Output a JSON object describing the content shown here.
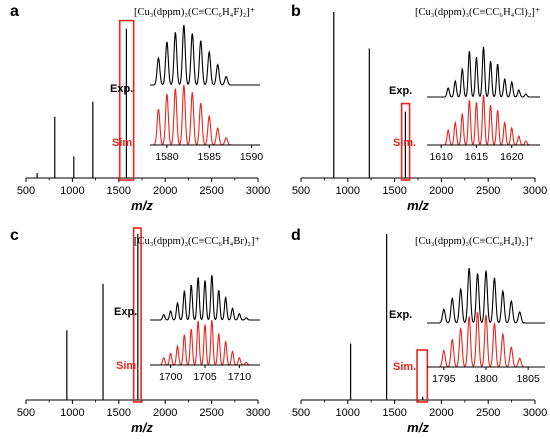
{
  "chart_data": [
    {
      "type": "line",
      "panel_label": "a",
      "formula": "[Cu₃(dppm)₃(C≡CC₆H₄F)₂]⁺",
      "xlabel": "m/z",
      "xlim": [
        500,
        3000
      ],
      "x_ticks": [
        "500",
        "1000",
        "1500",
        "2000",
        "2500",
        "3000"
      ],
      "peaks": [
        {
          "x": 620,
          "y": 0.03
        },
        {
          "x": 810,
          "y": 0.37
        },
        {
          "x": 1015,
          "y": 0.13
        },
        {
          "x": 1220,
          "y": 0.46
        },
        {
          "x": 1582,
          "y": 0.9
        }
      ],
      "highlight": {
        "x_range": [
          1510,
          1660
        ]
      },
      "inset": {
        "xlim": [
          1578,
          1591
        ],
        "x_ticks": [
          "1580",
          "1585",
          "1590"
        ],
        "exp_label": "Exp.",
        "sim_label": "Sim.",
        "exp_peaks": [
          {
            "x": 1579,
            "y": 0.45
          },
          {
            "x": 1580,
            "y": 0.72
          },
          {
            "x": 1581,
            "y": 0.88
          },
          {
            "x": 1582,
            "y": 1.0
          },
          {
            "x": 1583,
            "y": 0.86
          },
          {
            "x": 1584,
            "y": 0.74
          },
          {
            "x": 1585,
            "y": 0.55
          },
          {
            "x": 1586,
            "y": 0.34
          },
          {
            "x": 1587,
            "y": 0.14
          }
        ],
        "sim_peaks": [
          {
            "x": 1579,
            "y": 0.6
          },
          {
            "x": 1580,
            "y": 0.85
          },
          {
            "x": 1581,
            "y": 0.94
          },
          {
            "x": 1582,
            "y": 1.0
          },
          {
            "x": 1583,
            "y": 0.88
          },
          {
            "x": 1584,
            "y": 0.7
          },
          {
            "x": 1585,
            "y": 0.48
          },
          {
            "x": 1586,
            "y": 0.28
          },
          {
            "x": 1587,
            "y": 0.12
          }
        ]
      }
    },
    {
      "type": "line",
      "panel_label": "b",
      "formula": "[Cu₃(dppm)₃(C≡CC₆H₄Cl)₂]⁺",
      "xlabel": "m/z",
      "xlim": [
        500,
        3000
      ],
      "x_ticks": [
        "500",
        "1000",
        "1500",
        "2000",
        "2500",
        "3000"
      ],
      "peaks": [
        {
          "x": 850,
          "y": 1.0
        },
        {
          "x": 1230,
          "y": 0.78
        },
        {
          "x": 1615,
          "y": 0.4
        }
      ],
      "highlight": {
        "x_range": [
          1575,
          1660
        ]
      },
      "inset": {
        "xlim": [
          1608,
          1624
        ],
        "x_ticks": [
          "1610",
          "1615",
          "1620"
        ],
        "exp_label": "Exp.",
        "sim_label": "Sim.",
        "exp_peaks": [
          {
            "x": 1611,
            "y": 0.18
          },
          {
            "x": 1612,
            "y": 0.32
          },
          {
            "x": 1613,
            "y": 0.56
          },
          {
            "x": 1614,
            "y": 0.92
          },
          {
            "x": 1615,
            "y": 0.8
          },
          {
            "x": 1616,
            "y": 1.0
          },
          {
            "x": 1617,
            "y": 0.72
          },
          {
            "x": 1618,
            "y": 0.66
          },
          {
            "x": 1619,
            "y": 0.36
          },
          {
            "x": 1620,
            "y": 0.3
          },
          {
            "x": 1621,
            "y": 0.14
          },
          {
            "x": 1622,
            "y": 0.06
          }
        ],
        "sim_peaks": [
          {
            "x": 1611,
            "y": 0.3
          },
          {
            "x": 1612,
            "y": 0.45
          },
          {
            "x": 1613,
            "y": 0.62
          },
          {
            "x": 1614,
            "y": 0.9
          },
          {
            "x": 1615,
            "y": 0.86
          },
          {
            "x": 1616,
            "y": 1.0
          },
          {
            "x": 1617,
            "y": 0.8
          },
          {
            "x": 1618,
            "y": 0.7
          },
          {
            "x": 1619,
            "y": 0.45
          },
          {
            "x": 1620,
            "y": 0.34
          },
          {
            "x": 1621,
            "y": 0.18
          },
          {
            "x": 1622,
            "y": 0.08
          }
        ]
      }
    },
    {
      "type": "line",
      "panel_label": "c",
      "formula": "[Cu₃(dppm)₃(C≡CC₆H₄Br)₂]⁺",
      "xlabel": "m/z",
      "xlim": [
        500,
        3000
      ],
      "x_ticks": [
        "500",
        "1000",
        "1500",
        "2000",
        "2500",
        "3000"
      ],
      "peaks": [
        {
          "x": 940,
          "y": 0.42
        },
        {
          "x": 1330,
          "y": 0.7
        },
        {
          "x": 1705,
          "y": 1.0
        }
      ],
      "highlight": {
        "x_range": [
          1660,
          1740
        ]
      },
      "inset": {
        "xlim": [
          1697,
          1713
        ],
        "x_ticks": [
          "1700",
          "1705",
          "1710"
        ],
        "exp_label": "Exp.",
        "sim_label": "Sim.",
        "exp_peaks": [
          {
            "x": 1699,
            "y": 0.12
          },
          {
            "x": 1700,
            "y": 0.2
          },
          {
            "x": 1701,
            "y": 0.38
          },
          {
            "x": 1702,
            "y": 0.64
          },
          {
            "x": 1703,
            "y": 0.78
          },
          {
            "x": 1704,
            "y": 0.95
          },
          {
            "x": 1705,
            "y": 0.88
          },
          {
            "x": 1706,
            "y": 1.0
          },
          {
            "x": 1707,
            "y": 0.66
          },
          {
            "x": 1708,
            "y": 0.5
          },
          {
            "x": 1709,
            "y": 0.26
          },
          {
            "x": 1710,
            "y": 0.14
          },
          {
            "x": 1711,
            "y": 0.05
          }
        ],
        "sim_peaks": [
          {
            "x": 1699,
            "y": 0.16
          },
          {
            "x": 1700,
            "y": 0.26
          },
          {
            "x": 1701,
            "y": 0.42
          },
          {
            "x": 1702,
            "y": 0.68
          },
          {
            "x": 1703,
            "y": 0.8
          },
          {
            "x": 1704,
            "y": 0.98
          },
          {
            "x": 1705,
            "y": 0.9
          },
          {
            "x": 1706,
            "y": 1.0
          },
          {
            "x": 1707,
            "y": 0.7
          },
          {
            "x": 1708,
            "y": 0.52
          },
          {
            "x": 1709,
            "y": 0.3
          },
          {
            "x": 1710,
            "y": 0.16
          },
          {
            "x": 1711,
            "y": 0.06
          }
        ]
      }
    },
    {
      "type": "line",
      "panel_label": "d",
      "formula": "[Cu₃(dppm)₃(C≡CC₆H₄I)₂]⁺",
      "xlabel": "m/z",
      "xlim": [
        500,
        3000
      ],
      "x_ticks": [
        "500",
        "1000",
        "1500",
        "2000",
        "2500",
        "3000"
      ],
      "peaks": [
        {
          "x": 1030,
          "y": 0.34
        },
        {
          "x": 1415,
          "y": 1.0
        },
        {
          "x": 1800,
          "y": 0.02
        }
      ],
      "highlight": {
        "x_range": [
          1740,
          1850
        ]
      },
      "inset": {
        "xlim": [
          1793,
          1807
        ],
        "x_ticks": [
          "1795",
          "1800",
          "1805"
        ],
        "exp_label": "Exp.",
        "sim_label": "Sim.",
        "exp_peaks": [
          {
            "x": 1795,
            "y": 0.25
          },
          {
            "x": 1796,
            "y": 0.45
          },
          {
            "x": 1797,
            "y": 0.62
          },
          {
            "x": 1798,
            "y": 1.0
          },
          {
            "x": 1799,
            "y": 0.9
          },
          {
            "x": 1800,
            "y": 0.95
          },
          {
            "x": 1801,
            "y": 0.82
          },
          {
            "x": 1802,
            "y": 0.58
          },
          {
            "x": 1803,
            "y": 0.4
          },
          {
            "x": 1804,
            "y": 0.2
          }
        ],
        "sim_peaks": [
          {
            "x": 1795,
            "y": 0.3
          },
          {
            "x": 1796,
            "y": 0.5
          },
          {
            "x": 1797,
            "y": 0.7
          },
          {
            "x": 1798,
            "y": 0.92
          },
          {
            "x": 1799,
            "y": 1.0
          },
          {
            "x": 1800,
            "y": 0.95
          },
          {
            "x": 1801,
            "y": 0.8
          },
          {
            "x": 1802,
            "y": 0.6
          },
          {
            "x": 1803,
            "y": 0.36
          },
          {
            "x": 1804,
            "y": 0.16
          }
        ]
      }
    }
  ],
  "colors": {
    "experimental": "#000000",
    "simulated": "#e8261f",
    "highlight_box": "#e8261f"
  }
}
